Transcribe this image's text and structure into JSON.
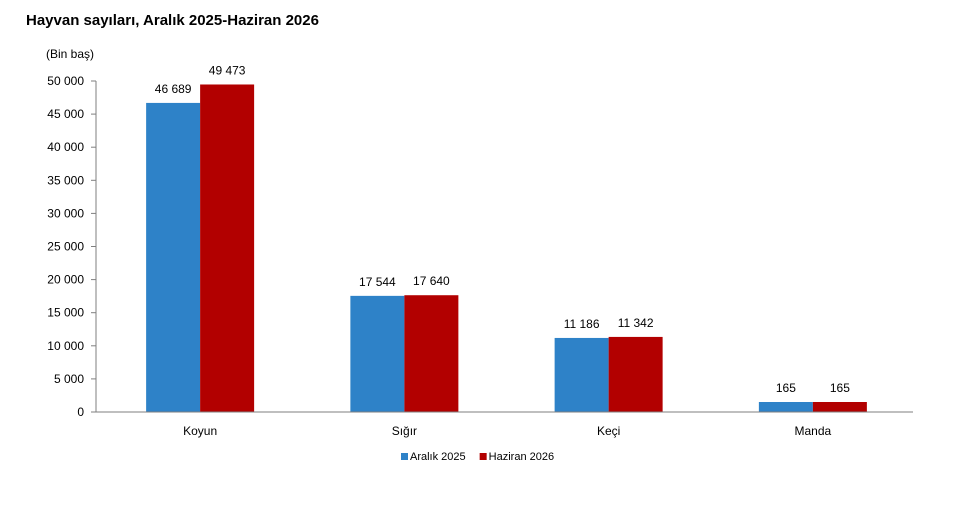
{
  "chart_data": {
    "type": "bar",
    "title": "Hayvan sayıları, Aralık 2025-Haziran 2026",
    "ylabel": "(Bin baş)",
    "xlabel": "",
    "categories": [
      "Koyun",
      "Sığır",
      "Keçi",
      "Manda"
    ],
    "series": [
      {
        "name": "Aralık 2025",
        "color": "#2e82c8",
        "values": [
          46689,
          17544,
          11186,
          165
        ],
        "labels": [
          "46 689",
          "17 544",
          "11 186",
          "165"
        ]
      },
      {
        "name": "Haziran 2026",
        "color": "#b20000",
        "values": [
          49473,
          17640,
          11342,
          165
        ],
        "labels": [
          "49 473",
          "17 640",
          "11 342",
          "165"
        ]
      }
    ],
    "ylim": [
      0,
      50000
    ],
    "yticks": [
      0,
      5000,
      10000,
      15000,
      20000,
      25000,
      30000,
      35000,
      40000,
      45000,
      50000
    ],
    "ytick_labels": [
      "0",
      "5 000",
      "10 000",
      "15 000",
      "20 000",
      "25 000",
      "30 000",
      "35 000",
      "40 000",
      "45 000",
      "50 000"
    ],
    "grid": false,
    "legend_position": "bottom-center"
  }
}
